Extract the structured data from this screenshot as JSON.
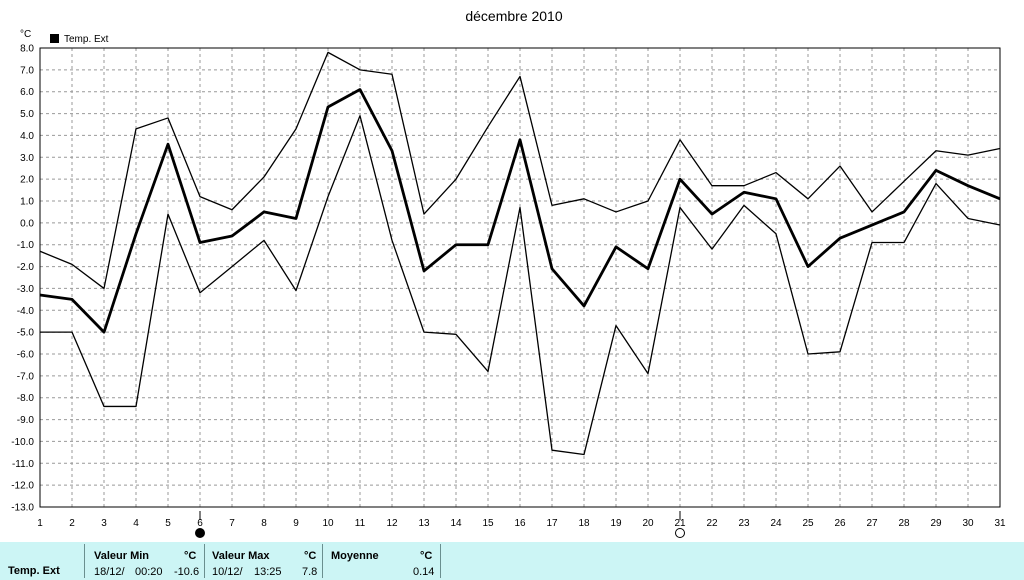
{
  "chart_data": {
    "type": "line",
    "title": "décembre 2010",
    "unit_label": "°C",
    "legend": [
      {
        "name": "Temp. Ext",
        "color": "#000000"
      }
    ],
    "legend_placement": "top-left",
    "grid": true,
    "x_ticks": [
      "1",
      "2",
      "3",
      "4",
      "5",
      "6",
      "7",
      "8",
      "9",
      "10",
      "11",
      "12",
      "13",
      "14",
      "15",
      "16",
      "17",
      "18",
      "19",
      "20",
      "21",
      "22",
      "23",
      "24",
      "25",
      "26",
      "27",
      "28",
      "29",
      "30",
      "31"
    ],
    "y_ticks": [
      "8.0",
      "7.0",
      "6.0",
      "5.0",
      "4.0",
      "3.0",
      "2.0",
      "1.0",
      "0.0",
      "-1.0",
      "-2.0",
      "-3.0",
      "-4.0",
      "-5.0",
      "-6.0",
      "-7.0",
      "-8.0",
      "-9.0",
      "-10.0",
      "-11.0",
      "-12.0",
      "-13.0"
    ],
    "xlim": [
      1,
      31
    ],
    "ylim": [
      -13,
      8
    ],
    "series": [
      {
        "name": "Temp. Ext",
        "stroke": "max",
        "values": [
          -1.3,
          -1.9,
          -3.0,
          4.3,
          4.8,
          1.2,
          0.6,
          2.1,
          4.3,
          7.8,
          7.0,
          6.8,
          0.4,
          2.0,
          4.4,
          6.7,
          0.8,
          1.1,
          0.5,
          1.0,
          3.8,
          1.7,
          1.7,
          2.3,
          1.1,
          2.6,
          0.5,
          1.9,
          3.3,
          3.1,
          3.4
        ]
      },
      {
        "name": "Temp. Ext",
        "stroke": "avg",
        "values": [
          -3.3,
          -3.5,
          -5.0,
          -0.5,
          3.6,
          -0.9,
          -0.6,
          0.5,
          0.2,
          5.3,
          6.1,
          3.3,
          -2.2,
          -1.0,
          -1.0,
          3.8,
          -2.1,
          -3.8,
          -1.1,
          -2.1,
          2.0,
          0.4,
          1.4,
          1.1,
          -2.0,
          -0.7,
          -0.1,
          0.5,
          2.4,
          1.7,
          1.1
        ]
      },
      {
        "name": "Temp. Ext",
        "stroke": "min",
        "values": [
          -5.0,
          -5.0,
          -8.4,
          -8.4,
          0.4,
          -3.2,
          -2.0,
          -0.8,
          -3.1,
          1.2,
          4.9,
          -0.8,
          -5.0,
          -5.1,
          -6.8,
          0.7,
          -10.4,
          -10.6,
          -4.7,
          -6.9,
          0.7,
          -1.2,
          0.8,
          -0.5,
          -6.0,
          -5.9,
          -0.9,
          -0.9,
          1.8,
          0.2,
          -0.1
        ]
      }
    ],
    "moon_phases": [
      {
        "day": 6,
        "symbol": "●"
      },
      {
        "day": 21,
        "symbol": "○"
      }
    ]
  },
  "footer": {
    "series_label": "Temp. Ext",
    "min": {
      "header": "Valeur Min",
      "unit": "°C",
      "date": "18/12/",
      "time": "00:20",
      "value": "-10.6"
    },
    "max": {
      "header": "Valeur Max",
      "unit": "°C",
      "date": "10/12/",
      "time": "13:25",
      "value": "7.8"
    },
    "avg": {
      "header": "Moyenne",
      "unit": "°C",
      "value": "0.14"
    }
  }
}
